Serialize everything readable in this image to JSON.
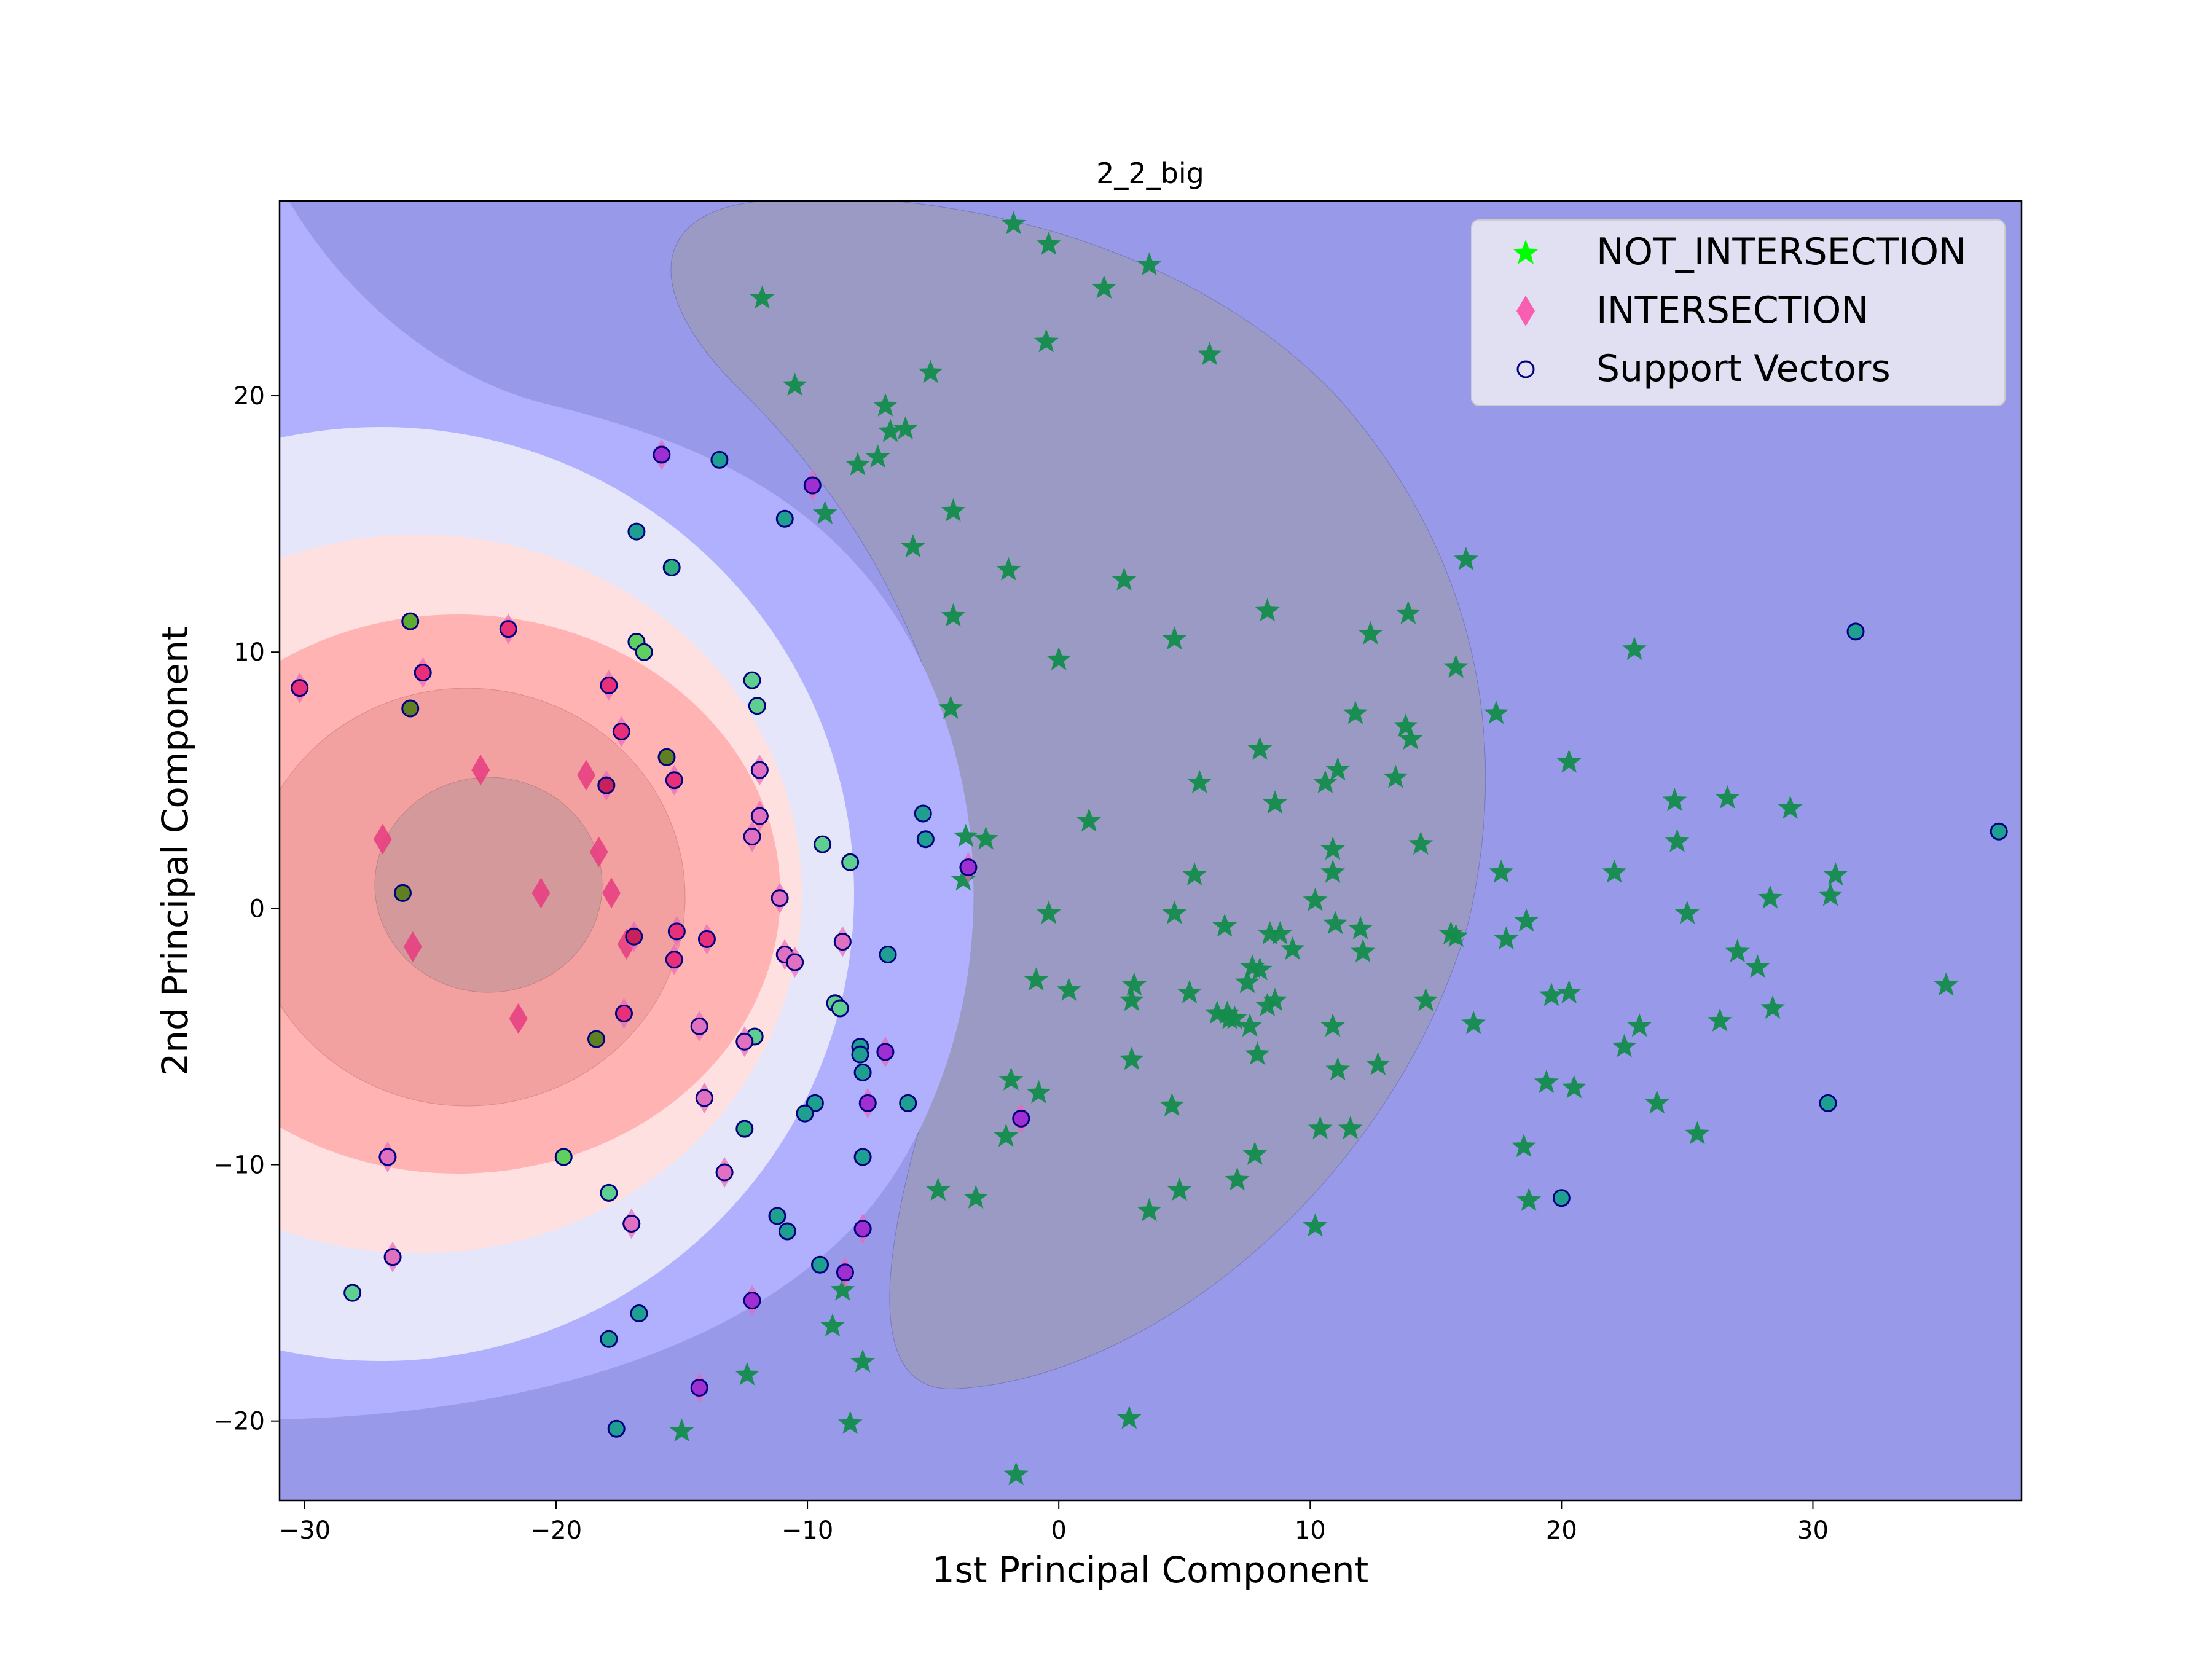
{
  "chart_data": {
    "type": "scatter",
    "title": "2_2_big",
    "xlabel": "1st Principal Component",
    "ylabel": "2nd Principal Component",
    "xlim": [
      -31,
      38.3
    ],
    "ylim": [
      -23.1,
      27.6
    ],
    "x_ticks": [
      -30,
      -20,
      -10,
      0,
      10,
      20,
      30
    ],
    "y_ticks": [
      -20,
      -10,
      0,
      10,
      20
    ],
    "x_tick_labels": [
      "−30",
      "−20",
      "−10",
      "0",
      "10",
      "20",
      "30"
    ],
    "y_tick_labels": [
      "−20",
      "−10",
      "0",
      "10",
      "20"
    ],
    "grid": false,
    "legend_position": "top-right",
    "colors": {
      "not_intersection": "#00ff00",
      "intersection": "#ff3fa0",
      "support_vectors_edge": "#000080",
      "background": "#9999ea"
    },
    "series": [
      {
        "name": "NOT_INTERSECTION",
        "marker": "star",
        "points": [
          [
            -1.8,
            26.7
          ],
          [
            -0.4,
            25.9
          ],
          [
            3.6,
            25.1
          ],
          [
            1.8,
            24.2
          ],
          [
            -11.8,
            23.8
          ],
          [
            -0.5,
            22.1
          ],
          [
            6.0,
            21.6
          ],
          [
            -5.1,
            20.9
          ],
          [
            -10.5,
            20.4
          ],
          [
            -6.9,
            19.6
          ],
          [
            -6.1,
            18.7
          ],
          [
            -6.7,
            18.6
          ],
          [
            -7.2,
            17.6
          ],
          [
            -8.0,
            17.3
          ],
          [
            -9.3,
            15.4
          ],
          [
            -4.2,
            15.5
          ],
          [
            16.2,
            13.6
          ],
          [
            -5.8,
            14.1
          ],
          [
            -2.0,
            13.2
          ],
          [
            2.6,
            12.8
          ],
          [
            8.3,
            11.6
          ],
          [
            13.9,
            11.5
          ],
          [
            -4.2,
            11.4
          ],
          [
            12.4,
            10.7
          ],
          [
            4.6,
            10.5
          ],
          [
            22.9,
            10.1
          ],
          [
            0.0,
            9.7
          ],
          [
            15.8,
            9.4
          ],
          [
            17.4,
            7.6
          ],
          [
            -4.3,
            7.8
          ],
          [
            11.8,
            7.6
          ],
          [
            13.8,
            7.1
          ],
          [
            14.0,
            6.6
          ],
          [
            8.0,
            6.2
          ],
          [
            11.1,
            5.4
          ],
          [
            10.6,
            4.9
          ],
          [
            20.3,
            5.7
          ],
          [
            13.4,
            5.1
          ],
          [
            5.6,
            4.9
          ],
          [
            24.5,
            4.2
          ],
          [
            26.6,
            4.3
          ],
          [
            8.6,
            4.1
          ],
          [
            29.1,
            3.9
          ],
          [
            1.2,
            3.4
          ],
          [
            -3.7,
            2.8
          ],
          [
            -2.9,
            2.7
          ],
          [
            24.6,
            2.6
          ],
          [
            14.4,
            2.5
          ],
          [
            10.9,
            2.3
          ],
          [
            -3.8,
            1.1
          ],
          [
            5.4,
            1.3
          ],
          [
            10.9,
            1.4
          ],
          [
            17.6,
            1.4
          ],
          [
            22.1,
            1.4
          ],
          [
            30.9,
            1.3
          ],
          [
            28.3,
            0.4
          ],
          [
            10.2,
            0.3
          ],
          [
            30.7,
            0.5
          ],
          [
            -0.4,
            -0.2
          ],
          [
            4.6,
            -0.2
          ],
          [
            18.6,
            -0.5
          ],
          [
            6.6,
            -0.7
          ],
          [
            11.0,
            -0.6
          ],
          [
            12.0,
            -0.8
          ],
          [
            25.0,
            -0.2
          ],
          [
            8.4,
            -1.0
          ],
          [
            8.8,
            -1.0
          ],
          [
            15.6,
            -1.0
          ],
          [
            15.8,
            -1.1
          ],
          [
            17.8,
            -1.2
          ],
          [
            9.3,
            -1.6
          ],
          [
            12.1,
            -1.7
          ],
          [
            27.0,
            -1.7
          ],
          [
            27.8,
            -2.3
          ],
          [
            7.7,
            -2.3
          ],
          [
            8.0,
            -2.4
          ],
          [
            -0.9,
            -2.8
          ],
          [
            7.5,
            -2.9
          ],
          [
            3.0,
            -3.0
          ],
          [
            0.4,
            -3.2
          ],
          [
            5.2,
            -3.3
          ],
          [
            19.6,
            -3.4
          ],
          [
            20.3,
            -3.3
          ],
          [
            35.3,
            -3.0
          ],
          [
            2.9,
            -3.6
          ],
          [
            8.6,
            -3.6
          ],
          [
            14.6,
            -3.6
          ],
          [
            8.3,
            -3.8
          ],
          [
            6.3,
            -4.1
          ],
          [
            6.7,
            -4.1
          ],
          [
            6.8,
            -4.3
          ],
          [
            28.4,
            -3.9
          ],
          [
            7.0,
            -4.3
          ],
          [
            7.6,
            -4.6
          ],
          [
            10.9,
            -4.6
          ],
          [
            16.5,
            -4.5
          ],
          [
            23.1,
            -4.6
          ],
          [
            26.3,
            -4.4
          ],
          [
            22.5,
            -5.4
          ],
          [
            7.9,
            -5.7
          ],
          [
            2.9,
            -5.9
          ],
          [
            12.7,
            -6.1
          ],
          [
            11.1,
            -6.3
          ],
          [
            -1.9,
            -6.7
          ],
          [
            19.4,
            -6.8
          ],
          [
            20.5,
            -7.0
          ],
          [
            -0.8,
            -7.2
          ],
          [
            23.8,
            -7.6
          ],
          [
            4.5,
            -7.7
          ],
          [
            25.4,
            -8.8
          ],
          [
            -2.1,
            -8.9
          ],
          [
            11.6,
            -8.6
          ],
          [
            10.4,
            -8.6
          ],
          [
            18.5,
            -9.3
          ],
          [
            7.8,
            -9.6
          ],
          [
            7.1,
            -10.6
          ],
          [
            4.8,
            -11.0
          ],
          [
            -4.8,
            -11.0
          ],
          [
            -3.3,
            -11.3
          ],
          [
            18.7,
            -11.4
          ],
          [
            3.6,
            -11.8
          ],
          [
            10.2,
            -12.4
          ],
          [
            -8.6,
            -14.9
          ],
          [
            -9.0,
            -16.3
          ],
          [
            -7.8,
            -17.7
          ],
          [
            -12.4,
            -18.2
          ],
          [
            -8.3,
            -20.1
          ],
          [
            2.8,
            -19.9
          ],
          [
            -15.0,
            -20.4
          ],
          [
            -1.7,
            -22.1
          ]
        ]
      },
      {
        "name": "INTERSECTION",
        "marker": "diamond",
        "points": [
          [
            -23.0,
            5.4
          ],
          [
            -18.8,
            5.2
          ],
          [
            -26.9,
            2.7
          ],
          [
            -18.3,
            2.2
          ],
          [
            -20.6,
            0.6
          ],
          [
            -17.8,
            0.6
          ],
          [
            -25.7,
            -1.5
          ],
          [
            -17.2,
            -1.4
          ],
          [
            -21.5,
            -4.3
          ]
        ]
      }
    ],
    "support_vectors": [
      {
        "x": -15.8,
        "y": 17.7,
        "fill": "#9f2fd0"
      },
      {
        "x": -13.5,
        "y": 17.5,
        "fill": "#1f9f90"
      },
      {
        "x": -9.8,
        "y": 16.5,
        "fill": "#9f2fd0"
      },
      {
        "x": -10.9,
        "y": 15.2,
        "fill": "#1f9f90"
      },
      {
        "x": -16.8,
        "y": 14.7,
        "fill": "#1f9f90"
      },
      {
        "x": -15.4,
        "y": 13.3,
        "fill": "#2faf80"
      },
      {
        "x": -25.8,
        "y": 11.2,
        "fill": "#5faa30"
      },
      {
        "x": -21.9,
        "y": 10.9,
        "fill": "#e8307a"
      },
      {
        "x": -16.8,
        "y": 10.4,
        "fill": "#5fcf5f"
      },
      {
        "x": -16.5,
        "y": 10.0,
        "fill": "#5fcf5f"
      },
      {
        "x": -25.3,
        "y": 9.2,
        "fill": "#e8307a"
      },
      {
        "x": -12.2,
        "y": 8.9,
        "fill": "#5fcf8f"
      },
      {
        "x": -30.2,
        "y": 8.6,
        "fill": "#e8307a"
      },
      {
        "x": -17.9,
        "y": 8.7,
        "fill": "#e8307a"
      },
      {
        "x": -12.0,
        "y": 7.9,
        "fill": "#5fcf8f"
      },
      {
        "x": -25.8,
        "y": 7.8,
        "fill": "#5f7f20"
      },
      {
        "x": -17.4,
        "y": 6.9,
        "fill": "#e8307a"
      },
      {
        "x": -15.6,
        "y": 5.9,
        "fill": "#5f7f20"
      },
      {
        "x": -11.9,
        "y": 5.4,
        "fill": "#e070c0"
      },
      {
        "x": -15.3,
        "y": 5.0,
        "fill": "#e8307a"
      },
      {
        "x": -18.0,
        "y": 4.8,
        "fill": "#c8205a"
      },
      {
        "x": -5.4,
        "y": 3.7,
        "fill": "#1f9f90"
      },
      {
        "x": -11.9,
        "y": 3.6,
        "fill": "#e070c0"
      },
      {
        "x": -12.2,
        "y": 2.8,
        "fill": "#e070c0"
      },
      {
        "x": -5.3,
        "y": 2.7,
        "fill": "#1f9f90"
      },
      {
        "x": -9.4,
        "y": 2.5,
        "fill": "#5fcf8f"
      },
      {
        "x": -8.3,
        "y": 1.8,
        "fill": "#5fcf8f"
      },
      {
        "x": -3.6,
        "y": 1.6,
        "fill": "#9f2fd0"
      },
      {
        "x": -26.1,
        "y": 0.6,
        "fill": "#5f7f20"
      },
      {
        "x": -11.1,
        "y": 0.4,
        "fill": "#e070c0"
      },
      {
        "x": -16.9,
        "y": -1.1,
        "fill": "#c8205a"
      },
      {
        "x": -15.2,
        "y": -0.9,
        "fill": "#e8307a"
      },
      {
        "x": -14.0,
        "y": -1.2,
        "fill": "#e8307a"
      },
      {
        "x": -8.6,
        "y": -1.3,
        "fill": "#e070c0"
      },
      {
        "x": -6.8,
        "y": -1.8,
        "fill": "#1f9f90"
      },
      {
        "x": -10.9,
        "y": -1.8,
        "fill": "#e070c0"
      },
      {
        "x": -10.5,
        "y": -2.1,
        "fill": "#e070c0"
      },
      {
        "x": -15.3,
        "y": -2.0,
        "fill": "#e8307a"
      },
      {
        "x": -8.9,
        "y": -3.7,
        "fill": "#5fcf8f"
      },
      {
        "x": -8.7,
        "y": -3.9,
        "fill": "#5fcf8f"
      },
      {
        "x": -17.3,
        "y": -4.1,
        "fill": "#e8307a"
      },
      {
        "x": -14.3,
        "y": -4.6,
        "fill": "#e070c0"
      },
      {
        "x": -12.1,
        "y": -5.0,
        "fill": "#5fcf8f"
      },
      {
        "x": -12.5,
        "y": -5.2,
        "fill": "#e070c0"
      },
      {
        "x": -18.4,
        "y": -5.1,
        "fill": "#5f7f20"
      },
      {
        "x": -7.9,
        "y": -5.4,
        "fill": "#1f9f90"
      },
      {
        "x": -7.9,
        "y": -5.7,
        "fill": "#1f9f90"
      },
      {
        "x": -6.9,
        "y": -5.6,
        "fill": "#9f2fd0"
      },
      {
        "x": -7.8,
        "y": -6.4,
        "fill": "#1f9f90"
      },
      {
        "x": -14.1,
        "y": -7.4,
        "fill": "#e070c0"
      },
      {
        "x": -9.7,
        "y": -7.6,
        "fill": "#1f9f90"
      },
      {
        "x": -7.6,
        "y": -7.6,
        "fill": "#9f2fd0"
      },
      {
        "x": -6.0,
        "y": -7.6,
        "fill": "#1f9f90"
      },
      {
        "x": -10.1,
        "y": -8.0,
        "fill": "#1f9f90"
      },
      {
        "x": -1.5,
        "y": -8.2,
        "fill": "#9f2fd0"
      },
      {
        "x": -12.5,
        "y": -8.6,
        "fill": "#2faf80"
      },
      {
        "x": -7.8,
        "y": -9.7,
        "fill": "#1f9f90"
      },
      {
        "x": -19.7,
        "y": -9.7,
        "fill": "#5fcf5f"
      },
      {
        "x": -26.7,
        "y": -9.7,
        "fill": "#e070c0"
      },
      {
        "x": -13.3,
        "y": -10.3,
        "fill": "#e070c0"
      },
      {
        "x": -17.9,
        "y": -11.1,
        "fill": "#5fcf8f"
      },
      {
        "x": -11.2,
        "y": -12.0,
        "fill": "#1f9f90"
      },
      {
        "x": -17.0,
        "y": -12.3,
        "fill": "#e070c0"
      },
      {
        "x": -7.8,
        "y": -12.5,
        "fill": "#9f2fd0"
      },
      {
        "x": -10.8,
        "y": -12.6,
        "fill": "#1f9f90"
      },
      {
        "x": -26.5,
        "y": -13.6,
        "fill": "#e070c0"
      },
      {
        "x": -9.5,
        "y": -13.9,
        "fill": "#1f9f90"
      },
      {
        "x": -8.5,
        "y": -14.2,
        "fill": "#9f2fd0"
      },
      {
        "x": -28.1,
        "y": -15.0,
        "fill": "#5fcf8f"
      },
      {
        "x": -12.2,
        "y": -15.3,
        "fill": "#9f2fd0"
      },
      {
        "x": -16.7,
        "y": -15.8,
        "fill": "#1f9f90"
      },
      {
        "x": -17.9,
        "y": -16.8,
        "fill": "#1f9f90"
      },
      {
        "x": -14.3,
        "y": -18.7,
        "fill": "#9f2fd0"
      },
      {
        "x": -17.6,
        "y": -20.3,
        "fill": "#1f9f90"
      },
      {
        "x": 31.7,
        "y": 10.8,
        "fill": "#1f9f90"
      },
      {
        "x": 37.4,
        "y": 3.0,
        "fill": "#1f9f90"
      },
      {
        "x": 30.6,
        "y": -7.6,
        "fill": "#1f9f90"
      },
      {
        "x": 20.0,
        "y": -11.3,
        "fill": "#1f9f90"
      }
    ],
    "legend": [
      {
        "label": "NOT_INTERSECTION",
        "marker": "star"
      },
      {
        "label": "INTERSECTION",
        "marker": "diamond"
      },
      {
        "label": "Support Vectors",
        "marker": "circle"
      }
    ]
  }
}
